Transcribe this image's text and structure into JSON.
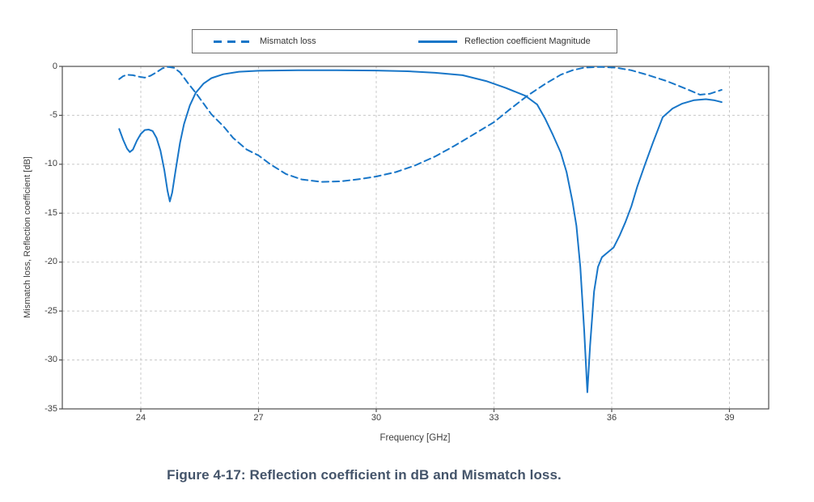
{
  "chart_data": {
    "type": "line",
    "title": "",
    "xlabel": "Frequency [GHz]",
    "ylabel": "Mismatch loss, Reflection coefficient [dB]",
    "xlim": [
      22,
      40
    ],
    "ylim": [
      -35,
      0
    ],
    "xticks": [
      24,
      27,
      30,
      33,
      36,
      39
    ],
    "yticks": [
      0,
      -5,
      -10,
      -15,
      -20,
      -25,
      -30,
      -35
    ],
    "grid": true,
    "legend_position": "top-center",
    "series": [
      {
        "name": "Mismatch loss",
        "style": "dashed",
        "points": [
          [
            23.45,
            -1.3
          ],
          [
            23.55,
            -1.0
          ],
          [
            23.65,
            -0.85
          ],
          [
            23.8,
            -0.9
          ],
          [
            23.95,
            -1.05
          ],
          [
            24.1,
            -1.15
          ],
          [
            24.25,
            -0.95
          ],
          [
            24.4,
            -0.6
          ],
          [
            24.55,
            -0.2
          ],
          [
            24.7,
            -0.05
          ],
          [
            24.85,
            -0.15
          ],
          [
            25.0,
            -0.6
          ],
          [
            25.2,
            -1.7
          ],
          [
            25.4,
            -2.7
          ],
          [
            25.6,
            -3.8
          ],
          [
            25.8,
            -4.9
          ],
          [
            26.1,
            -6.1
          ],
          [
            26.35,
            -7.3
          ],
          [
            26.7,
            -8.5
          ],
          [
            27.0,
            -9.1
          ],
          [
            27.3,
            -10.0
          ],
          [
            27.7,
            -11.0
          ],
          [
            28.1,
            -11.55
          ],
          [
            28.6,
            -11.8
          ],
          [
            29.1,
            -11.75
          ],
          [
            29.6,
            -11.5
          ],
          [
            30.0,
            -11.25
          ],
          [
            30.5,
            -10.8
          ],
          [
            31.0,
            -10.1
          ],
          [
            31.5,
            -9.2
          ],
          [
            32.0,
            -8.1
          ],
          [
            32.5,
            -6.9
          ],
          [
            33.0,
            -5.7
          ],
          [
            33.4,
            -4.4
          ],
          [
            33.85,
            -3.0
          ],
          [
            34.3,
            -1.8
          ],
          [
            34.7,
            -0.85
          ],
          [
            35.0,
            -0.4
          ],
          [
            35.3,
            -0.12
          ],
          [
            35.7,
            -0.05
          ],
          [
            36.1,
            -0.12
          ],
          [
            36.5,
            -0.4
          ],
          [
            36.9,
            -0.85
          ],
          [
            37.4,
            -1.5
          ],
          [
            37.9,
            -2.3
          ],
          [
            38.25,
            -2.9
          ],
          [
            38.5,
            -2.8
          ],
          [
            38.65,
            -2.6
          ],
          [
            38.8,
            -2.4
          ]
        ]
      },
      {
        "name": "Reflection coefficient Magnitude",
        "style": "solid",
        "points": [
          [
            23.45,
            -6.4
          ],
          [
            23.55,
            -7.5
          ],
          [
            23.65,
            -8.4
          ],
          [
            23.72,
            -8.75
          ],
          [
            23.8,
            -8.5
          ],
          [
            23.9,
            -7.6
          ],
          [
            24.0,
            -6.9
          ],
          [
            24.1,
            -6.5
          ],
          [
            24.2,
            -6.45
          ],
          [
            24.3,
            -6.6
          ],
          [
            24.4,
            -7.3
          ],
          [
            24.5,
            -8.6
          ],
          [
            24.6,
            -10.6
          ],
          [
            24.68,
            -12.7
          ],
          [
            24.74,
            -13.8
          ],
          [
            24.8,
            -12.9
          ],
          [
            24.88,
            -10.8
          ],
          [
            25.0,
            -7.8
          ],
          [
            25.1,
            -5.9
          ],
          [
            25.25,
            -4.0
          ],
          [
            25.4,
            -2.7
          ],
          [
            25.6,
            -1.75
          ],
          [
            25.8,
            -1.2
          ],
          [
            26.1,
            -0.8
          ],
          [
            26.5,
            -0.55
          ],
          [
            27.0,
            -0.45
          ],
          [
            28.0,
            -0.4
          ],
          [
            29.0,
            -0.4
          ],
          [
            30.0,
            -0.42
          ],
          [
            30.8,
            -0.5
          ],
          [
            31.5,
            -0.65
          ],
          [
            32.2,
            -0.9
          ],
          [
            32.8,
            -1.5
          ],
          [
            33.3,
            -2.2
          ],
          [
            33.8,
            -3.0
          ],
          [
            34.1,
            -3.9
          ],
          [
            34.3,
            -5.3
          ],
          [
            34.5,
            -7.0
          ],
          [
            34.7,
            -8.8
          ],
          [
            34.85,
            -10.8
          ],
          [
            35.0,
            -13.8
          ],
          [
            35.1,
            -16.3
          ],
          [
            35.2,
            -20.5
          ],
          [
            35.3,
            -27.0
          ],
          [
            35.38,
            -33.3
          ],
          [
            35.45,
            -28.5
          ],
          [
            35.55,
            -23.0
          ],
          [
            35.65,
            -20.5
          ],
          [
            35.75,
            -19.5
          ],
          [
            35.9,
            -19.0
          ],
          [
            36.05,
            -18.5
          ],
          [
            36.2,
            -17.3
          ],
          [
            36.35,
            -15.9
          ],
          [
            36.5,
            -14.3
          ],
          [
            36.65,
            -12.3
          ],
          [
            36.85,
            -10.0
          ],
          [
            37.05,
            -7.8
          ],
          [
            37.3,
            -5.2
          ],
          [
            37.55,
            -4.3
          ],
          [
            37.8,
            -3.8
          ],
          [
            38.1,
            -3.45
          ],
          [
            38.4,
            -3.35
          ],
          [
            38.6,
            -3.45
          ],
          [
            38.8,
            -3.65
          ]
        ]
      }
    ],
    "colors": {
      "line": "#1876C8",
      "grid": "#c8c8c8",
      "axis": "#4d4d4d",
      "tick_text": "#3d3d3d",
      "legend_border": "#6e6e6e",
      "caption": "#44546A"
    }
  },
  "caption": {
    "text": "Figure 4-17: Reflection coefficient in dB and Mismatch loss."
  }
}
